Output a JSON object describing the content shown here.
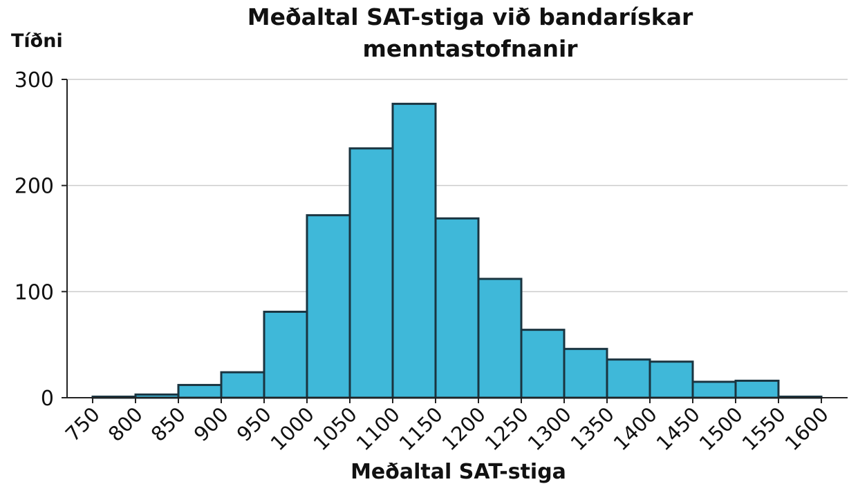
{
  "chart_data": {
    "type": "bar",
    "title_line1": "Meðaltal SAT-stiga við bandarískar",
    "title_line2": "menntastofnanir",
    "xlabel": "Meðaltal SAT-stiga",
    "ylabel": "Tíðni",
    "bin_edges": [
      750,
      800,
      850,
      900,
      950,
      1000,
      1050,
      1100,
      1150,
      1200,
      1250,
      1300,
      1350,
      1400,
      1450,
      1500,
      1550,
      1600
    ],
    "values": [
      1,
      3,
      12,
      24,
      81,
      172,
      235,
      277,
      169,
      112,
      64,
      46,
      36,
      34,
      15,
      16,
      1
    ],
    "y_ticks": [
      0,
      100,
      200,
      300
    ],
    "ylim": [
      0,
      300
    ],
    "grid": true,
    "bar_color": "#3fb8d9",
    "bar_edge_color": "#1a3440"
  }
}
